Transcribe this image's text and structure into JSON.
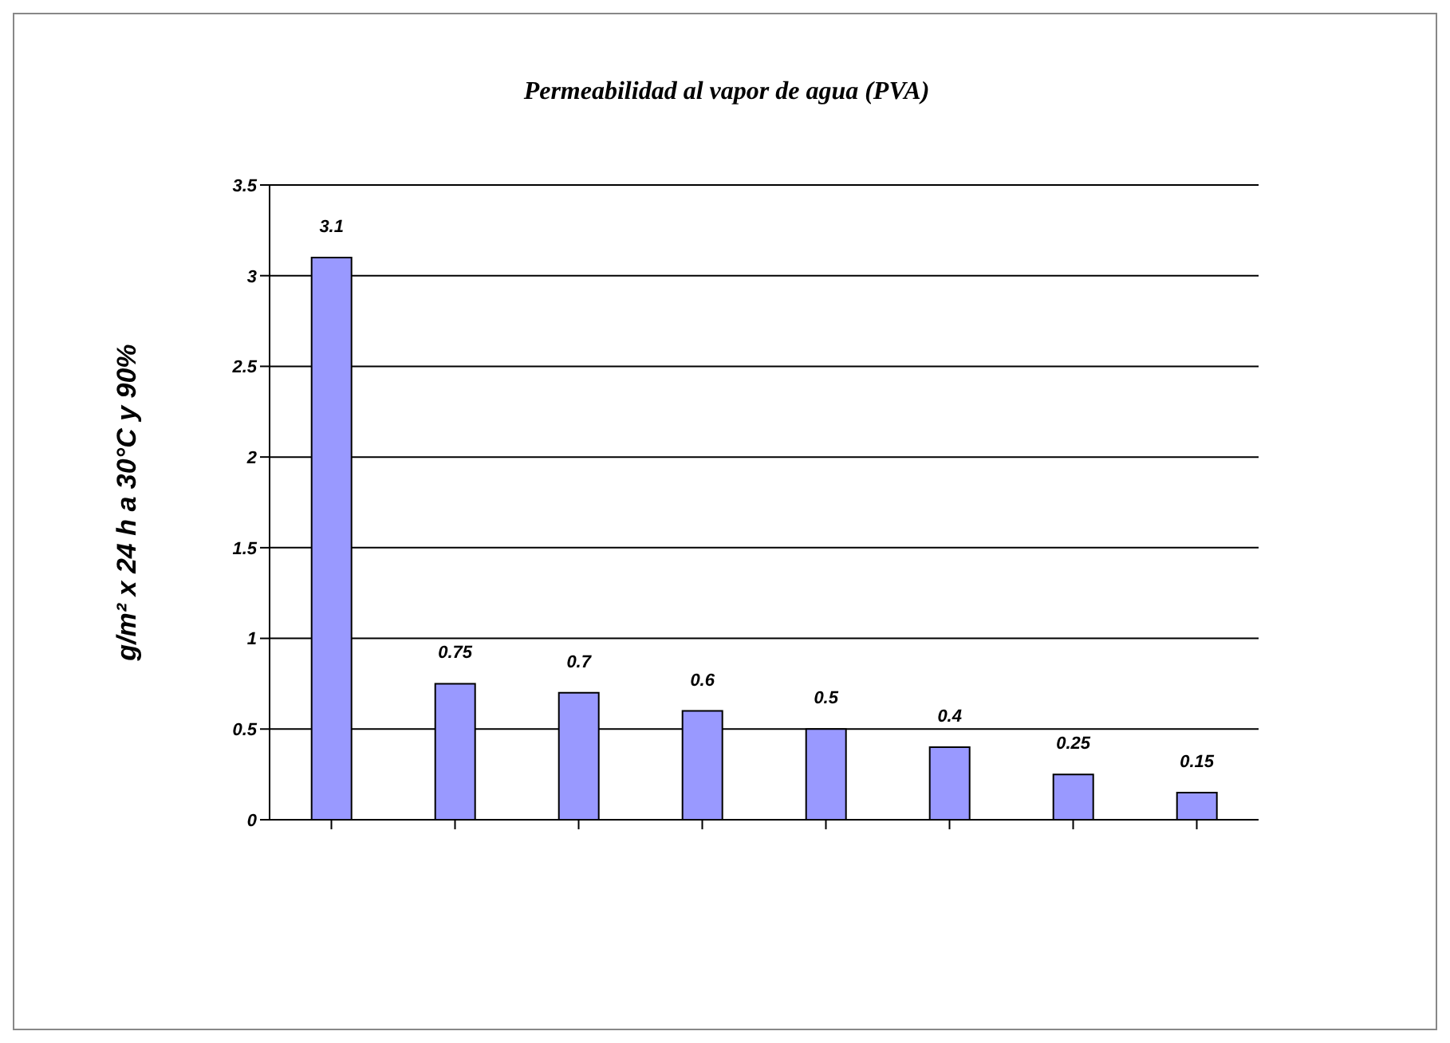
{
  "chart_data": {
    "type": "bar",
    "title": "Permeabilidad al vapor de agua (PVA)",
    "ylabel": "g/m² x 24 h a 30°C y 90%",
    "categories": [
      null,
      null,
      null,
      null,
      null,
      null,
      null,
      null
    ],
    "values": [
      3.1,
      0.75,
      0.7,
      0.6,
      0.5,
      0.4,
      0.25,
      0.15
    ],
    "color": "#9999ff",
    "ylim": [
      0,
      3.5
    ],
    "yticks": [
      0,
      0.5,
      1,
      1.5,
      2,
      2.5,
      3,
      3.5
    ],
    "grid": "y",
    "data_labels": true
  }
}
